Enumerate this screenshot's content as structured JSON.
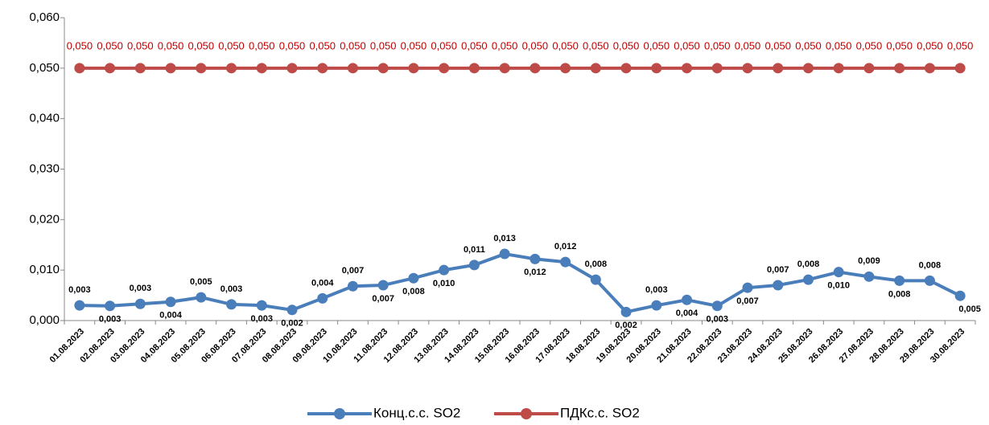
{
  "chart_data": {
    "type": "line",
    "categories": [
      "01.08.2023",
      "02.08.2023",
      "03.08.2023",
      "04.08.2023",
      "05.08.2023",
      "06.08.2023",
      "07.08.2023",
      "08.08.2023",
      "09.08.2023",
      "10.08.2023",
      "11.08.2023",
      "12.08.2023",
      "13.08.2023",
      "14.08.2023",
      "15.08.2023",
      "16.08.2023",
      "17.08.2023",
      "18.08.2023",
      "19.08.2023",
      "20.08.2023",
      "21.08.2023",
      "22.08.2023",
      "23.08.2023",
      "24.08.2023",
      "25.08.2023",
      "26.08.2023",
      "27.08.2023",
      "28.08.2023",
      "29.08.2023",
      "30.08.2023"
    ],
    "series": [
      {
        "name": "Конц.с.с. SO2",
        "color": "#4a7ebb",
        "values": [
          0.003,
          0.0029,
          0.0033,
          0.0037,
          0.0046,
          0.0032,
          0.003,
          0.0021,
          0.0044,
          0.0068,
          0.007,
          0.0084,
          0.01,
          0.011,
          0.0132,
          0.0122,
          0.0116,
          0.0081,
          0.0017,
          0.003,
          0.0041,
          0.0029,
          0.0065,
          0.007,
          0.0081,
          0.0096,
          0.0087,
          0.0079,
          0.0079,
          0.0049
        ],
        "value_labels": [
          "0,003",
          "0,003",
          "0,003",
          "0,004",
          "0,005",
          "0,003",
          "0,003",
          "0,002",
          "0,004",
          "0,007",
          "0,007",
          "0,008",
          "0,010",
          "0,011",
          "0,013",
          "0,012",
          "0,012",
          "0,008",
          "0,002",
          "0,003",
          "0,004",
          "0,003",
          "0,007",
          "0,007",
          "0,008",
          "0,010",
          "0,009",
          "0,008",
          "0,008",
          "0,005"
        ]
      },
      {
        "name": "ПДКс.с. SO2",
        "color": "#be4b48",
        "values": [
          0.05,
          0.05,
          0.05,
          0.05,
          0.05,
          0.05,
          0.05,
          0.05,
          0.05,
          0.05,
          0.05,
          0.05,
          0.05,
          0.05,
          0.05,
          0.05,
          0.05,
          0.05,
          0.05,
          0.05,
          0.05,
          0.05,
          0.05,
          0.05,
          0.05,
          0.05,
          0.05,
          0.05,
          0.05,
          0.05
        ],
        "value_labels": [
          "0,050",
          "0,050",
          "0,050",
          "0,050",
          "0,050",
          "0,050",
          "0,050",
          "0,050",
          "0,050",
          "0,050",
          "0,050",
          "0,050",
          "0,050",
          "0,050",
          "0,050",
          "0,050",
          "0,050",
          "0,050",
          "0,050",
          "0,050",
          "0,050",
          "0,050",
          "0,050",
          "0,050",
          "0,050",
          "0,050",
          "0,050",
          "0,050",
          "0,050",
          "0,050"
        ]
      }
    ],
    "ylim": [
      0,
      0.06
    ],
    "yticks": [
      {
        "value": 0,
        "label": "0,000"
      },
      {
        "value": 0.01,
        "label": "0,010"
      },
      {
        "value": 0.02,
        "label": "0,020"
      },
      {
        "value": 0.03,
        "label": "0,030"
      },
      {
        "value": 0.04,
        "label": "0,040"
      },
      {
        "value": 0.05,
        "label": "0,050"
      },
      {
        "value": 0.06,
        "label": "0,060"
      }
    ],
    "legend": "bottom"
  }
}
